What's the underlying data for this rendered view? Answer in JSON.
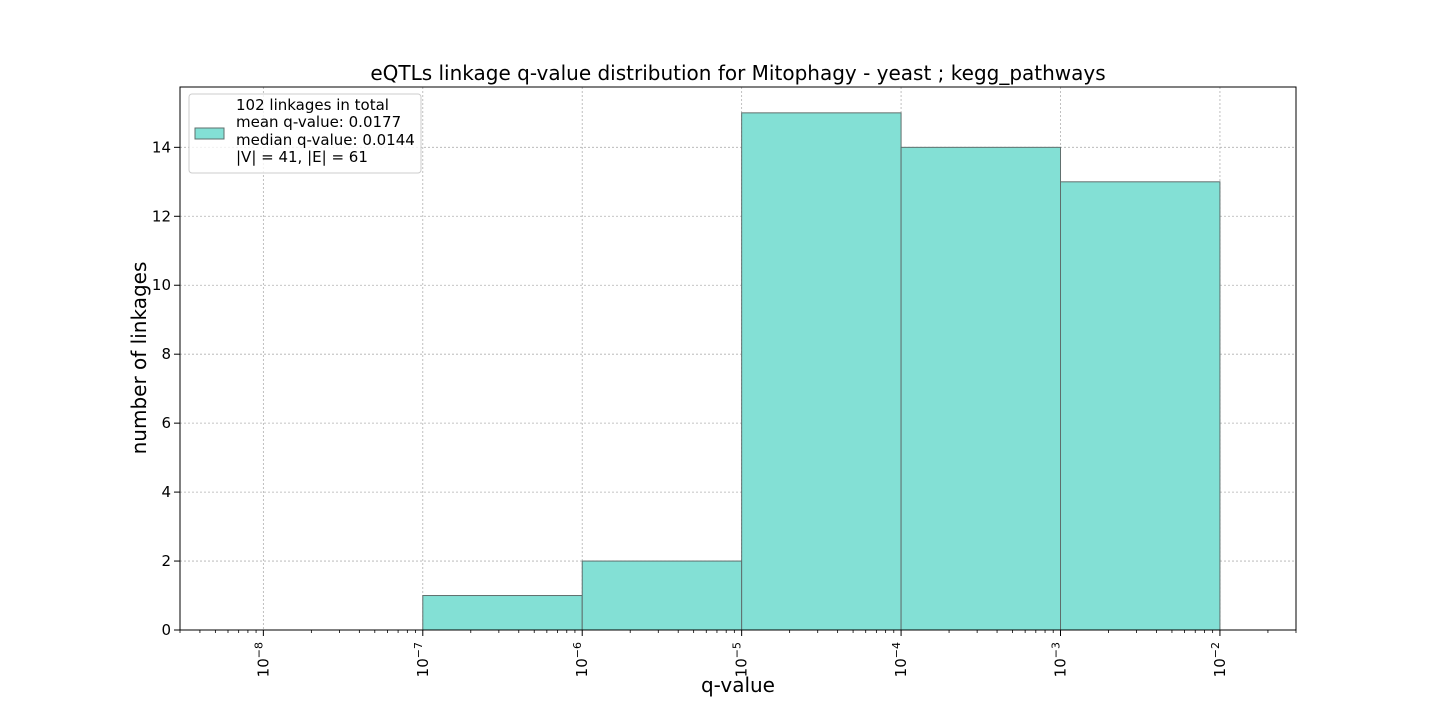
{
  "chart_data": {
    "type": "bar",
    "title": "eQTLs linkage q-value distribution for Mitophagy - yeast ; kegg_pathways",
    "xlabel": "q-value",
    "ylabel": "number of linkages",
    "x_scale": "log",
    "xlim": [
      3e-09,
      0.03
    ],
    "ylim": [
      0,
      15.75
    ],
    "grid": true,
    "bin_edges": [
      1e-08,
      1e-07,
      1e-06,
      1e-05,
      0.0001,
      0.001,
      0.01
    ],
    "values": [
      0,
      1,
      2,
      15,
      14,
      13
    ],
    "x_ticks": [
      {
        "value": 1e-08,
        "base": "10",
        "exp": "−8"
      },
      {
        "value": 1e-07,
        "base": "10",
        "exp": "−7"
      },
      {
        "value": 1e-06,
        "base": "10",
        "exp": "−6"
      },
      {
        "value": 1e-05,
        "base": "10",
        "exp": "−5"
      },
      {
        "value": 0.0001,
        "base": "10",
        "exp": "−4"
      },
      {
        "value": 0.001,
        "base": "10",
        "exp": "−3"
      },
      {
        "value": 0.01,
        "base": "10",
        "exp": "−2"
      }
    ],
    "y_ticks": [
      0,
      2,
      4,
      6,
      8,
      10,
      12,
      14
    ],
    "bar_color": "#83e0d5",
    "bar_edge_color": "#5f6f6d",
    "legend": {
      "placement": "top-left",
      "lines": [
        "102 linkages in total",
        "mean q-value: 0.0177",
        "median q-value: 0.0144",
        "|V| = 41, |E| = 61"
      ]
    }
  }
}
